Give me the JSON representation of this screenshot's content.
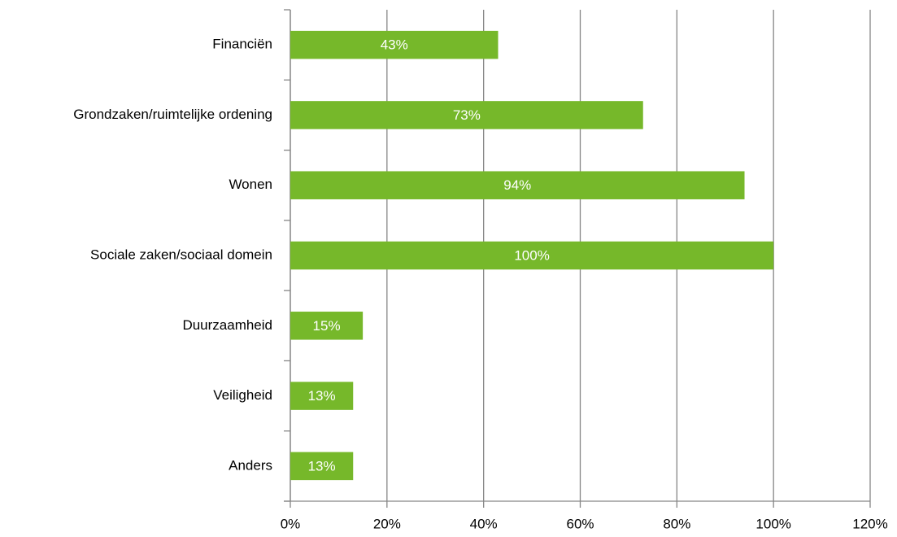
{
  "chart_data": {
    "type": "bar",
    "orientation": "horizontal",
    "categories": [
      "Financiën",
      "Grondzaken/ruimtelijke ordening",
      "Wonen",
      "Sociale zaken/sociaal domein",
      "Duurzaamheid",
      "Veiligheid",
      "Anders"
    ],
    "values": [
      43,
      73,
      94,
      100,
      15,
      13,
      13
    ],
    "value_labels": [
      "43%",
      "73%",
      "94%",
      "100%",
      "15%",
      "13%",
      "13%"
    ],
    "color": "#76b82a",
    "xlim": [
      0,
      120
    ],
    "xticks": [
      {
        "value": 0,
        "label": "0%"
      },
      {
        "value": 20,
        "label": "20%"
      },
      {
        "value": 40,
        "label": "40%"
      },
      {
        "value": 60,
        "label": "60%"
      },
      {
        "value": 80,
        "label": "80%"
      },
      {
        "value": 100,
        "label": "100%"
      },
      {
        "value": 120,
        "label": "120%"
      }
    ],
    "grid": true
  }
}
